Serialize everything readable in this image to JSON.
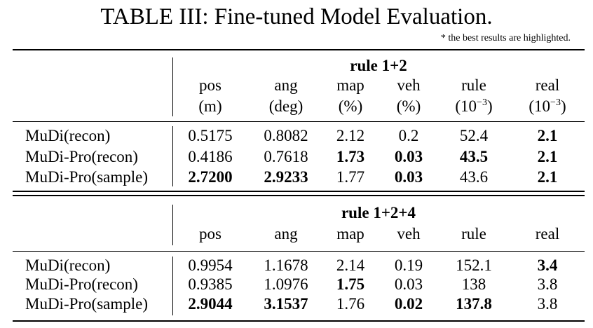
{
  "caption": "TABLE III: Fine-tuned Model Evaluation.",
  "note": "* the best results are highlighted.",
  "tables": [
    {
      "group": "rule 1+2",
      "headers": [
        {
          "name": "pos",
          "unit": "(m)"
        },
        {
          "name": "ang",
          "unit": "(deg)"
        },
        {
          "name": "map",
          "unit": "(%)"
        },
        {
          "name": "veh",
          "unit": "(%)"
        },
        {
          "name": "rule",
          "unit_base": "(10",
          "unit_exp": "−3",
          "unit_close": ")"
        },
        {
          "name": "real",
          "unit_base": "(10",
          "unit_exp": "−3",
          "unit_close": ")"
        }
      ],
      "rows": [
        {
          "label": "MuDi(recon)",
          "values": [
            "0.5175",
            "0.8082",
            "2.12",
            "0.2",
            "52.4",
            "2.1"
          ],
          "bold": [
            false,
            false,
            false,
            false,
            false,
            true
          ]
        },
        {
          "label": "MuDi-Pro(recon)",
          "values": [
            "0.4186",
            "0.7618",
            "1.73",
            "0.03",
            "43.5",
            "2.1"
          ],
          "bold": [
            false,
            false,
            true,
            true,
            true,
            true
          ]
        },
        {
          "label": "MuDi-Pro(sample)",
          "values": [
            "2.7200",
            "2.9233",
            "1.77",
            "0.03",
            "43.6",
            "2.1"
          ],
          "bold": [
            true,
            true,
            false,
            true,
            false,
            true
          ]
        }
      ]
    },
    {
      "group": "rule 1+2+4",
      "headers": [
        {
          "name": "pos"
        },
        {
          "name": "ang"
        },
        {
          "name": "map"
        },
        {
          "name": "veh"
        },
        {
          "name": "rule"
        },
        {
          "name": "real"
        }
      ],
      "rows": [
        {
          "label": "MuDi(recon)",
          "values": [
            "0.9954",
            "1.1678",
            "2.14",
            "0.19",
            "152.1",
            "3.4"
          ],
          "bold": [
            false,
            false,
            false,
            false,
            false,
            true
          ]
        },
        {
          "label": "MuDi-Pro(recon)",
          "values": [
            "0.9385",
            "1.0976",
            "1.75",
            "0.03",
            "138",
            "3.8"
          ],
          "bold": [
            false,
            false,
            true,
            false,
            false,
            false
          ]
        },
        {
          "label": "MuDi-Pro(sample)",
          "values": [
            "2.9044",
            "3.1537",
            "1.76",
            "0.02",
            "137.8",
            "3.8"
          ],
          "bold": [
            true,
            true,
            false,
            true,
            true,
            false
          ]
        }
      ]
    }
  ]
}
